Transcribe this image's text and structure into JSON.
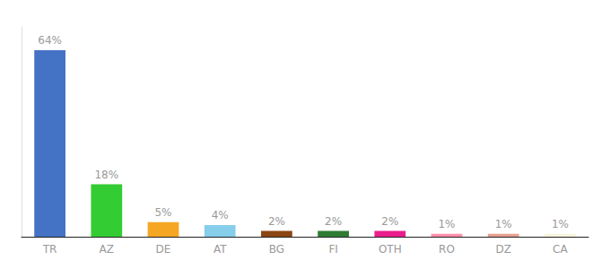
{
  "chart_data": {
    "type": "bar",
    "categories": [
      "TR",
      "AZ",
      "DE",
      "AT",
      "BG",
      "FI",
      "OTH",
      "RO",
      "DZ",
      "CA"
    ],
    "values": [
      64,
      18,
      5,
      4,
      2,
      2,
      2,
      1,
      1,
      1
    ],
    "value_labels": [
      "64%",
      "18%",
      "5%",
      "4%",
      "2%",
      "2%",
      "2%",
      "1%",
      "1%",
      "1%"
    ],
    "colors": [
      "#4472C4",
      "#33CC33",
      "#F5A623",
      "#87CEEB",
      "#8B4513",
      "#2E7D32",
      "#E91E8C",
      "#FF8FAB",
      "#E8A090",
      "#F5F5DC"
    ],
    "ylim": [
      0,
      72
    ],
    "data_labels": true,
    "tick_labels": "x",
    "grid": false
  }
}
